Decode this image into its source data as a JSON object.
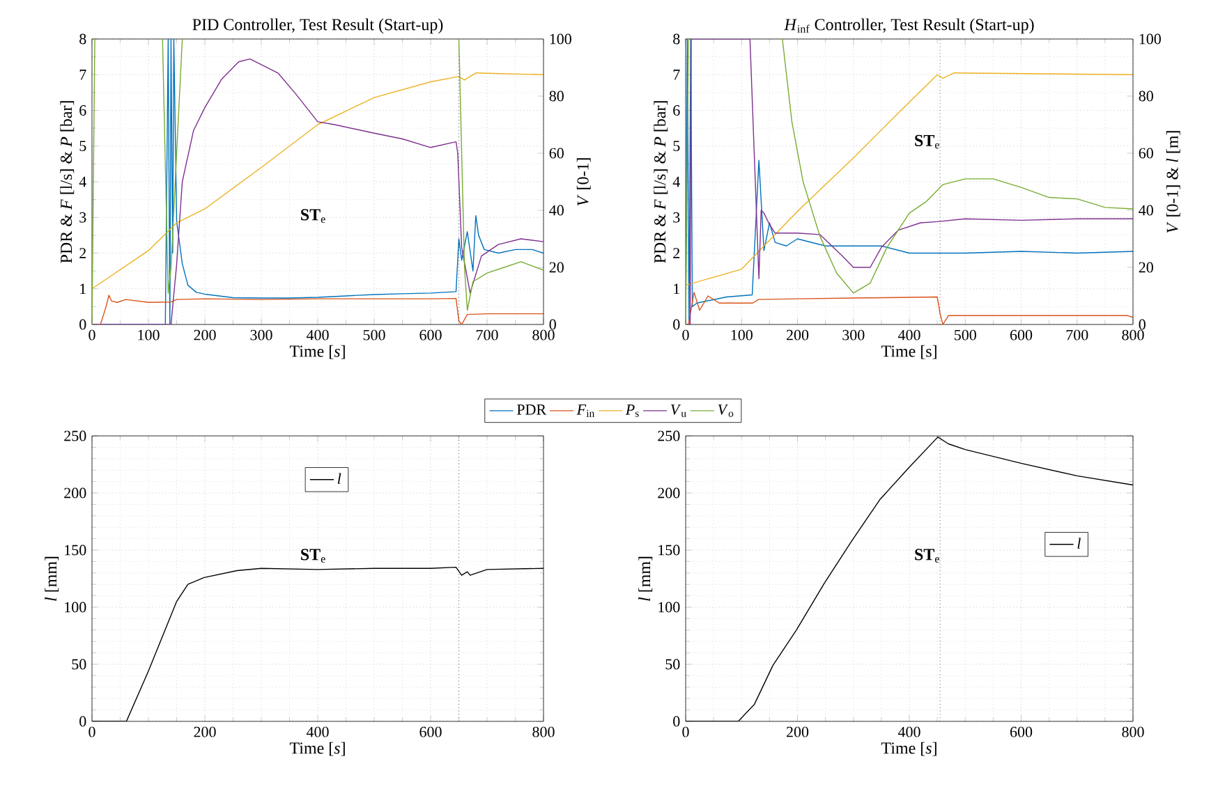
{
  "chart_data": [
    {
      "type": "line",
      "title": "PID Controller, Test Result (Start-up)",
      "xlabel": "Time [*s*]",
      "ylabel": "PDR & *F* [l/s] & *P* [bar]",
      "y2label": "*V* [0-1]",
      "xlim": [
        0,
        800
      ],
      "ylim": [
        0,
        8
      ],
      "y2lim": [
        0,
        100
      ],
      "xticks": [
        0,
        100,
        200,
        300,
        400,
        500,
        600,
        700,
        800
      ],
      "yticks": [
        0,
        1,
        2,
        3,
        4,
        5,
        6,
        7,
        8
      ],
      "y2ticks": [
        0,
        20,
        40,
        60,
        80,
        100
      ],
      "grid": true,
      "legend": "bottom",
      "series": [
        {
          "name": "PDR",
          "color": "#0072bd",
          "x": [
            0,
            130,
            135,
            138,
            140,
            143,
            145,
            150,
            160,
            170,
            185,
            200,
            250,
            300,
            350,
            400,
            450,
            500,
            550,
            600,
            645,
            650,
            655,
            665,
            675,
            680,
            685,
            695,
            720,
            750,
            780,
            800
          ],
          "values": [
            0,
            0,
            8,
            0,
            8,
            2,
            8,
            2.9,
            1.7,
            1.1,
            0.9,
            0.85,
            0.75,
            0.74,
            0.74,
            0.76,
            0.8,
            0.84,
            0.86,
            0.88,
            0.92,
            2.4,
            1.8,
            2.6,
            1.5,
            3.05,
            2.5,
            2.1,
            2.0,
            2.1,
            2.1,
            2.0
          ]
        },
        {
          "name": "*F*$_{in}$",
          "color": "#d95319",
          "x": [
            0,
            15,
            25,
            30,
            35,
            45,
            60,
            100,
            140,
            150,
            200,
            300,
            400,
            500,
            600,
            645,
            650,
            655,
            665,
            700,
            800
          ],
          "values": [
            0,
            0,
            0.5,
            0.82,
            0.65,
            0.62,
            0.7,
            0.62,
            0.63,
            0.7,
            0.72,
            0.7,
            0.72,
            0.72,
            0.72,
            0.73,
            0.1,
            0,
            0.28,
            0.3,
            0.3
          ]
        },
        {
          "name": "*P*$_{s}$",
          "color": "#edb120",
          "x": [
            0,
            100,
            150,
            200,
            300,
            400,
            500,
            600,
            650,
            660,
            680,
            800
          ],
          "values": [
            1.0,
            2.07,
            2.85,
            3.24,
            4.4,
            5.6,
            6.36,
            6.8,
            6.95,
            6.85,
            7.05,
            7.0
          ]
        },
        {
          "name": "*V*$_{u}$",
          "color": "#7e2f8e",
          "axis": "y2",
          "x": [
            0,
            140,
            150,
            160,
            180,
            200,
            230,
            260,
            280,
            300,
            330,
            360,
            400,
            430,
            500,
            550,
            600,
            645,
            648,
            655,
            670,
            690,
            720,
            760,
            800
          ],
          "values": [
            0,
            0,
            21,
            50,
            68,
            76,
            86,
            92,
            93,
            91,
            88,
            81,
            71,
            70,
            67,
            65,
            62,
            64,
            60,
            27,
            11,
            24,
            28,
            30,
            29
          ]
        },
        {
          "name": "*V*$_{o}$",
          "color": "#77ac30",
          "axis": "y2",
          "x": [
            0,
            5,
            50,
            125,
            135,
            140,
            150,
            160,
            400,
            650,
            660,
            665,
            675,
            700,
            730,
            760,
            800
          ],
          "values": [
            0,
            100,
            null,
            100,
            11,
            20,
            60,
            100,
            null,
            100,
            20,
            5,
            15,
            18,
            20,
            22,
            19
          ]
        }
      ],
      "ref_lines": [
        {
          "axis": "x",
          "value": 650,
          "line_style": "dotted",
          "color": "#000000"
        }
      ],
      "annotations": [
        "**ST**$_{e}$"
      ]
    },
    {
      "type": "line",
      "title": "*H*$_{inf}$ Controller, Test Result (Start-up)",
      "xlabel": "Time [s]",
      "ylabel": "PDR & *F* [l/s] & *P* [bar]",
      "y2label": "*V* [0-1] & *l* [m]",
      "xlim": [
        0,
        800
      ],
      "ylim": [
        0,
        8
      ],
      "y2lim": [
        0,
        100
      ],
      "xticks": [
        0,
        100,
        200,
        300,
        400,
        500,
        600,
        700,
        800
      ],
      "yticks": [
        0,
        1,
        2,
        3,
        4,
        5,
        6,
        7,
        8
      ],
      "y2ticks": [
        0,
        20,
        40,
        60,
        80,
        100
      ],
      "grid": true,
      "series": [
        {
          "color": "#0072bd",
          "x": [
            0,
            3,
            6,
            9,
            12,
            20,
            73,
            119,
            131,
            140,
            150,
            160,
            180,
            200,
            250,
            300,
            350,
            400,
            450,
            500,
            600,
            700,
            800
          ],
          "values": [
            0,
            8,
            0,
            8,
            0.5,
            0.6,
            0.77,
            0.83,
            4.6,
            2.07,
            2.85,
            2.3,
            2.2,
            2.4,
            2.2,
            2.2,
            2.2,
            2.0,
            2.0,
            2.0,
            2.05,
            2.0,
            2.05
          ]
        },
        {
          "color": "#d95319",
          "x": [
            0,
            5,
            15,
            25,
            40,
            60,
            120,
            130,
            200,
            300,
            450,
            455,
            460,
            470,
            790,
            800
          ],
          "values": [
            0,
            0,
            0.9,
            0.4,
            0.8,
            0.6,
            0.6,
            0.7,
            0.72,
            0.74,
            0.77,
            0.3,
            0,
            0.25,
            0.25,
            0.2
          ]
        },
        {
          "color": "#edb120",
          "x": [
            0,
            100,
            200,
            300,
            400,
            450,
            460,
            480,
            800
          ],
          "values": [
            1.1,
            1.55,
            3.17,
            4.67,
            6.23,
            7.0,
            6.9,
            7.05,
            7.0
          ]
        },
        {
          "color": "#7e2f8e",
          "axis": "y2",
          "x": [
            0,
            8,
            10,
            115,
            131,
            135,
            140,
            150,
            160,
            200,
            240,
            280,
            300,
            330,
            350,
            380,
            420,
            450,
            500,
            600,
            700,
            800
          ],
          "values": [
            0,
            0,
            100,
            100,
            16,
            40,
            39,
            35,
            32,
            32,
            31.5,
            24,
            20,
            20,
            27,
            33,
            35.6,
            36,
            37,
            36.5,
            37,
            37
          ]
        },
        {
          "color": "#77ac30",
          "axis": "y2",
          "x": [
            0,
            5,
            90,
            173,
            190,
            210,
            240,
            270,
            300,
            330,
            360,
            400,
            430,
            460,
            500,
            550,
            600,
            650,
            700,
            750,
            800
          ],
          "values": [
            0,
            100,
            null,
            100,
            71,
            50,
            31,
            18,
            11,
            14.5,
            27,
            39,
            43,
            49,
            51,
            51,
            48,
            44.5,
            44,
            41,
            40.5
          ]
        }
      ],
      "ref_lines": [
        {
          "axis": "x",
          "value": 455,
          "line_style": "dotted",
          "color": "#000000"
        }
      ],
      "annotations": [
        "**ST**$_{e}$"
      ]
    },
    {
      "type": "line",
      "xlabel": "Time [*s*]",
      "ylabel": "*l* [mm]",
      "xlim": [
        0,
        800
      ],
      "ylim": [
        0,
        250
      ],
      "xticks": [
        0,
        200,
        400,
        600,
        800
      ],
      "yticks": [
        0,
        50,
        100,
        150,
        200,
        250
      ],
      "grid": true,
      "legend": "top",
      "series": [
        {
          "name": "*l*",
          "color": "#000000",
          "x": [
            0,
            61,
            100,
            150,
            170,
            199,
            257,
            300,
            400,
            500,
            600,
            645,
            655,
            665,
            670,
            700,
            800
          ],
          "values": [
            0,
            0,
            44,
            105,
            120,
            126,
            132,
            134,
            133,
            134,
            134,
            135,
            128,
            131,
            128,
            133,
            134
          ]
        }
      ],
      "ref_lines": [
        {
          "axis": "x",
          "value": 650,
          "line_style": "dotted",
          "color": "#000000"
        }
      ],
      "annotations": [
        "**ST**$_{e}$"
      ]
    },
    {
      "type": "line",
      "xlabel": "Time [*s*]",
      "ylabel": "*l* [mm]",
      "xlim": [
        0,
        800
      ],
      "ylim": [
        0,
        250
      ],
      "xticks": [
        0,
        200,
        400,
        600,
        800
      ],
      "yticks": [
        0,
        50,
        100,
        150,
        200,
        250
      ],
      "grid": true,
      "legend": "right",
      "series": [
        {
          "name": "*l*",
          "color": "#000000",
          "x": [
            0,
            94,
            123,
            156,
            198,
            248,
            297,
            347,
            397,
            451,
            470,
            500,
            600,
            700,
            800
          ],
          "values": [
            0,
            0,
            15,
            49,
            80,
            121,
            158,
            194,
            221,
            249,
            243,
            238,
            226,
            215,
            207
          ]
        }
      ],
      "ref_lines": [
        {
          "axis": "x",
          "value": 455,
          "line_style": "dotted",
          "color": "#000000"
        }
      ],
      "annotations": [
        "**ST**$_{e}$"
      ]
    }
  ]
}
